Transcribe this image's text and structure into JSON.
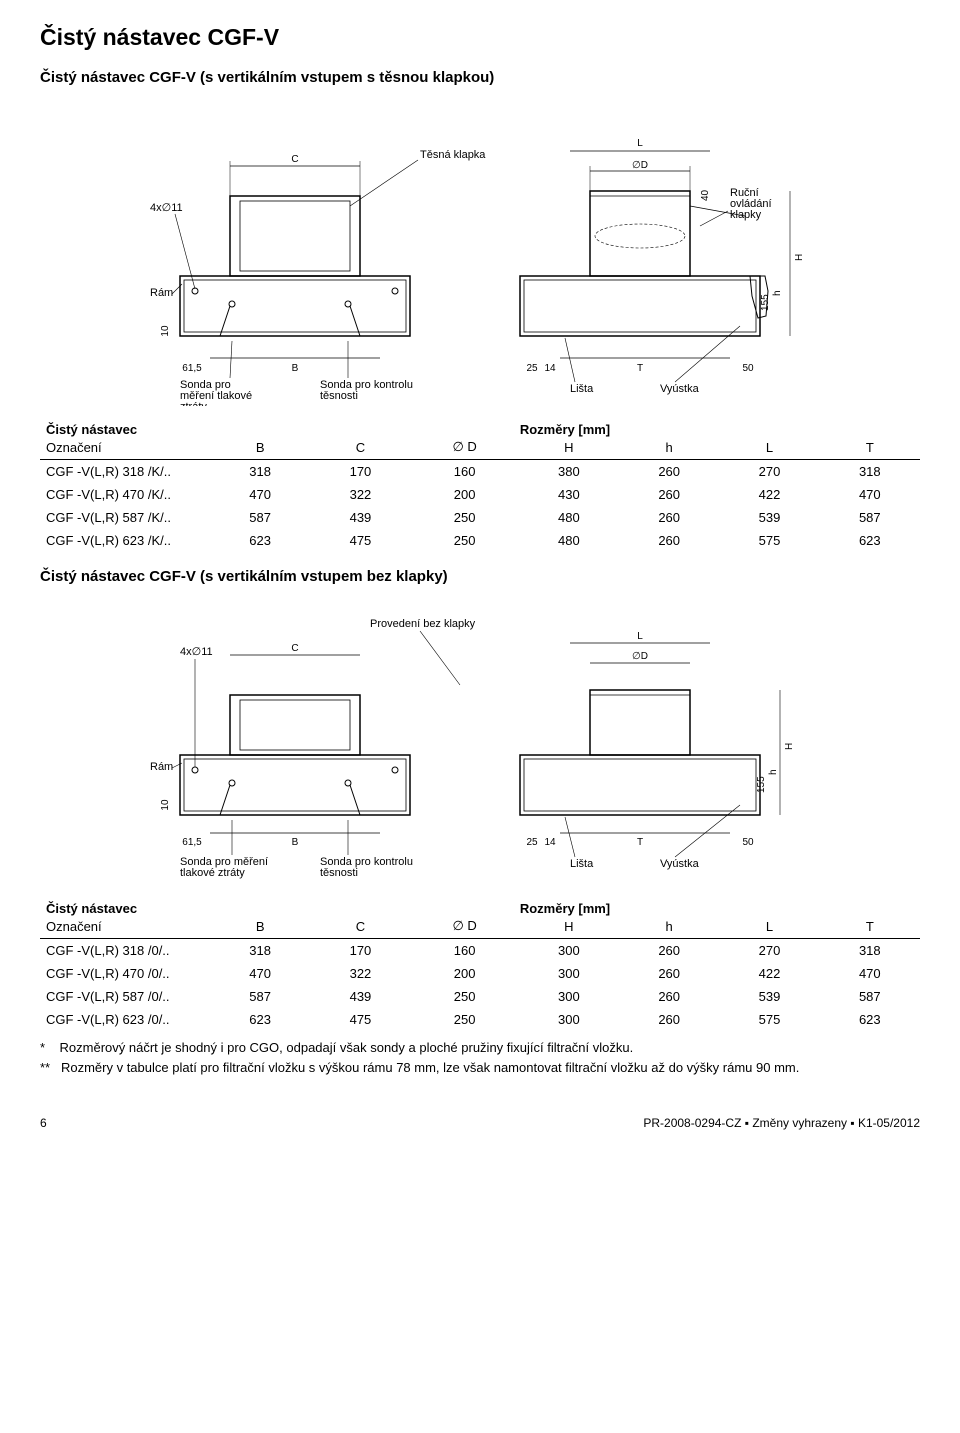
{
  "page": {
    "title": "Čistý nástavec CGF-V",
    "number": "6",
    "footer": "PR-2008-0294-CZ ▪ Změny vyhrazeny ▪ K1-05/2012"
  },
  "section1": {
    "heading": "Čistý nástavec CGF-V (s vertikálním vstupem s těsnou klapkou)",
    "diagram": {
      "labels": {
        "holes": "4x∅11",
        "c": "C",
        "tight_flap": "Těsná klapka",
        "l": "L",
        "d": "∅D",
        "manual_control": "Ruční ovládání klapky",
        "40": "40",
        "h_cap": "H",
        "frame": "Rám",
        "155": "155",
        "h_low": "h",
        "10": "10",
        "61_5": "61,5",
        "b": "B",
        "25": "25",
        "14": "14",
        "t": "T",
        "50": "50",
        "probe_pressure": "Sonda pro měření tlakové ztráty",
        "probe_seal": "Sonda pro kontrolu těsnosti",
        "strip": "Lišta",
        "outlet": "Vyústka"
      }
    },
    "table": {
      "title": "Čistý nástavec",
      "dim_title": "Rozměry [mm]",
      "columns": [
        "Označení",
        "B",
        "C",
        "∅ D",
        "H",
        "h",
        "L",
        "T"
      ],
      "rows": [
        [
          "CGF -V(L,R) 318 /K/..",
          "318",
          "170",
          "160",
          "380",
          "260",
          "270",
          "318"
        ],
        [
          "CGF -V(L,R) 470 /K/..",
          "470",
          "322",
          "200",
          "430",
          "260",
          "422",
          "470"
        ],
        [
          "CGF -V(L,R) 587 /K/..",
          "587",
          "439",
          "250",
          "480",
          "260",
          "539",
          "587"
        ],
        [
          "CGF -V(L,R) 623 /K/..",
          "623",
          "475",
          "250",
          "480",
          "260",
          "575",
          "623"
        ]
      ]
    }
  },
  "section2": {
    "heading": "Čistý nástavec CGF-V (s vertikálním vstupem bez klapky)",
    "diagram": {
      "labels": {
        "provedeni": "Provedení bez klapky",
        "holes": "4x∅11",
        "c": "C",
        "l": "L",
        "d": "∅D",
        "h_cap": "H",
        "frame": "Rám",
        "155": "155",
        "h_low": "h",
        "10": "10",
        "61_5": "61,5",
        "b": "B",
        "25": "25",
        "14": "14",
        "t": "T",
        "50": "50",
        "probe_pressure": "Sonda pro měření tlakové ztráty",
        "probe_seal": "Sonda pro kontrolu těsnosti",
        "strip": "Lišta",
        "outlet": "Vyústka"
      }
    },
    "table": {
      "title": "Čistý nástavec",
      "dim_title": "Rozměry [mm]",
      "columns": [
        "Označení",
        "B",
        "C",
        "∅ D",
        "H",
        "h",
        "L",
        "T"
      ],
      "rows": [
        [
          "CGF -V(L,R) 318 /0/..",
          "318",
          "170",
          "160",
          "300",
          "260",
          "270",
          "318"
        ],
        [
          "CGF -V(L,R) 470 /0/..",
          "470",
          "322",
          "200",
          "300",
          "260",
          "422",
          "470"
        ],
        [
          "CGF -V(L,R) 587 /0/..",
          "587",
          "439",
          "250",
          "300",
          "260",
          "539",
          "587"
        ],
        [
          "CGF -V(L,R) 623 /0/..",
          "623",
          "475",
          "250",
          "300",
          "260",
          "575",
          "623"
        ]
      ]
    }
  },
  "footnotes": {
    "line1_prefix": "*",
    "line1": "Rozměrový náčrt je shodný i pro CGO, odpadají však sondy a ploché pružiny fixující filtrační vložku.",
    "line2_prefix": "**",
    "line2": "Rozměry v tabulce platí pro filtrační vložku s výškou rámu 78 mm, lze však namontovat filtrační vložku až do výšky rámu 90 mm."
  }
}
